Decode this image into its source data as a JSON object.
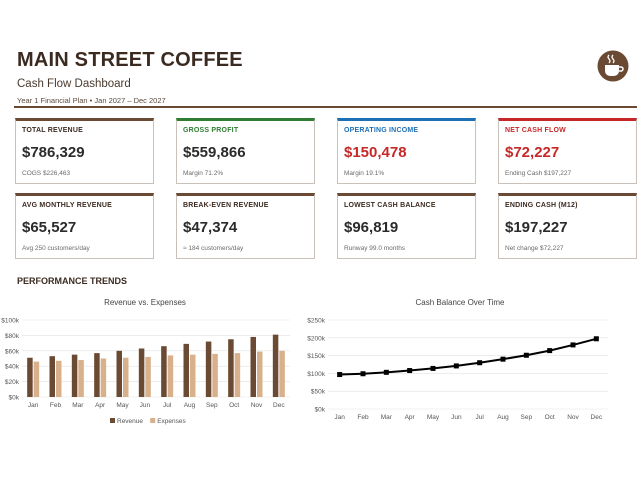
{
  "header": {
    "title": "MAIN STREET COFFEE",
    "subtitle": "Cash Flow Dashboard",
    "period": "Year 1 Financial Plan • Jan 2027 – Dec 2027"
  },
  "kpis": [
    {
      "label": "TOTAL REVENUE",
      "value": "$786,329",
      "sub": "COGS $226,463",
      "accent": "#6b4a33",
      "label_color": "#3b2a20",
      "value_color": "#2b2b2b"
    },
    {
      "label": "GROSS PROFIT",
      "value": "$559,866",
      "sub": "Margin 71.2%",
      "accent": "#2e7d32",
      "label_color": "#2e7d32",
      "value_color": "#2b2b2b"
    },
    {
      "label": "OPERATING INCOME",
      "value": "$150,478",
      "sub": "Margin 19.1%",
      "accent": "#1f6fb5",
      "label_color": "#1f6fb5",
      "value_color": "#c62828"
    },
    {
      "label": "NET CASH FLOW",
      "value": "$72,227",
      "sub": "Ending Cash $197,227",
      "accent": "#c62828",
      "label_color": "#c62828",
      "value_color": "#c62828"
    },
    {
      "label": "AVG MONTHLY REVENUE",
      "value": "$65,527",
      "sub": "Avg 250 customers/day",
      "accent": "#6b4a33",
      "label_color": "#3b2a20",
      "value_color": "#2b2b2b"
    },
    {
      "label": "BREAK-EVEN REVENUE",
      "value": "$47,374",
      "sub": "≈ 184 customers/day",
      "accent": "#6b4a33",
      "label_color": "#3b2a20",
      "value_color": "#2b2b2b"
    },
    {
      "label": "LOWEST CASH BALANCE",
      "value": "$96,819",
      "sub": "Runway 99.0 months",
      "accent": "#6b4a33",
      "label_color": "#3b2a20",
      "value_color": "#2b2b2b"
    },
    {
      "label": "ENDING CASH (M12)",
      "value": "$197,227",
      "sub": "Net change $72,227",
      "accent": "#6b4a33",
      "label_color": "#3b2a20",
      "value_color": "#2b2b2b"
    }
  ],
  "section_title": "PERFORMANCE TRENDS",
  "chart_data": [
    {
      "type": "bar",
      "title": "Revenue vs. Expenses",
      "categories": [
        "Jan",
        "Feb",
        "Mar",
        "Apr",
        "May",
        "Jun",
        "Jul",
        "Aug",
        "Sep",
        "Oct",
        "Nov",
        "Dec"
      ],
      "series": [
        {
          "name": "Revenue",
          "color": "#6b4a33",
          "values": [
            51000,
            53000,
            55000,
            57000,
            60000,
            63000,
            66000,
            69000,
            72000,
            75000,
            78000,
            81000
          ]
        },
        {
          "name": "Expenses",
          "color": "#d9b08c",
          "values": [
            46000,
            47000,
            48000,
            50000,
            51000,
            52000,
            54000,
            55000,
            56000,
            57000,
            59000,
            60000
          ]
        }
      ],
      "ylim": [
        0,
        100000
      ],
      "yticks": [
        "$0k",
        "$20k",
        "$40k",
        "$60k",
        "$80k",
        "$100k"
      ],
      "grid": true,
      "legend": "bottom"
    },
    {
      "type": "line",
      "title": "Cash Balance Over Time",
      "categories": [
        "Jan",
        "Feb",
        "Mar",
        "Apr",
        "May",
        "Jun",
        "Jul",
        "Aug",
        "Sep",
        "Oct",
        "Nov",
        "Dec"
      ],
      "series": [
        {
          "color": "#000000",
          "values": [
            96819,
            99000,
            103000,
            108000,
            114000,
            121000,
            130000,
            140000,
            151000,
            164000,
            180000,
            197227
          ]
        }
      ],
      "ylim": [
        0,
        250000
      ],
      "yticks": [
        "$0k",
        "$50k",
        "$100k",
        "$150k",
        "$200k",
        "$250k"
      ],
      "grid": true
    }
  ]
}
